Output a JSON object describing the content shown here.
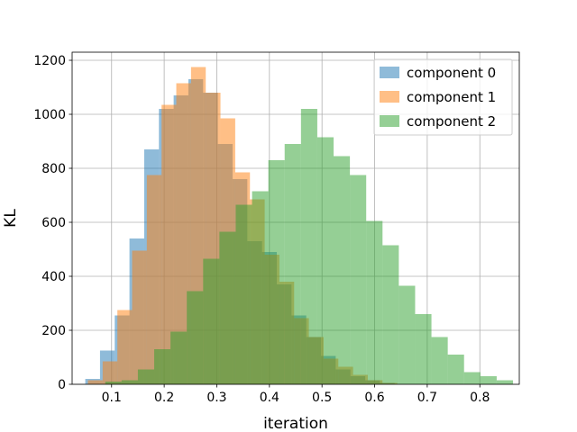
{
  "chart_data": {
    "type": "histogram",
    "title": "",
    "xlabel": "iteration",
    "ylabel": "KL",
    "xlim": [
      0.025,
      0.875
    ],
    "ylim": [
      0,
      1230
    ],
    "xticks": [
      "0.1",
      "0.2",
      "0.3",
      "0.4",
      "0.5",
      "0.6",
      "0.7",
      "0.8"
    ],
    "yticks": [
      "0",
      "200",
      "400",
      "600",
      "800",
      "1000",
      "1200"
    ],
    "grid": true,
    "legend_position": "top-right",
    "series": [
      {
        "name": "component 0",
        "color": "#1f77b4",
        "alpha": 0.5,
        "bins": [
          {
            "x0": 0.05,
            "x1": 0.078,
            "y": 20
          },
          {
            "x0": 0.078,
            "x1": 0.106,
            "y": 125
          },
          {
            "x0": 0.106,
            "x1": 0.134,
            "y": 255
          },
          {
            "x0": 0.134,
            "x1": 0.162,
            "y": 540
          },
          {
            "x0": 0.162,
            "x1": 0.19,
            "y": 870
          },
          {
            "x0": 0.19,
            "x1": 0.218,
            "y": 1020
          },
          {
            "x0": 0.218,
            "x1": 0.246,
            "y": 1070
          },
          {
            "x0": 0.246,
            "x1": 0.274,
            "y": 1130
          },
          {
            "x0": 0.274,
            "x1": 0.302,
            "y": 1080
          },
          {
            "x0": 0.302,
            "x1": 0.33,
            "y": 890
          },
          {
            "x0": 0.33,
            "x1": 0.358,
            "y": 760
          },
          {
            "x0": 0.358,
            "x1": 0.386,
            "y": 530
          },
          {
            "x0": 0.386,
            "x1": 0.414,
            "y": 490
          },
          {
            "x0": 0.414,
            "x1": 0.442,
            "y": 370
          },
          {
            "x0": 0.442,
            "x1": 0.47,
            "y": 255
          },
          {
            "x0": 0.47,
            "x1": 0.498,
            "y": 175
          },
          {
            "x0": 0.498,
            "x1": 0.526,
            "y": 105
          },
          {
            "x0": 0.526,
            "x1": 0.554,
            "y": 55
          },
          {
            "x0": 0.554,
            "x1": 0.582,
            "y": 30
          },
          {
            "x0": 0.582,
            "x1": 0.61,
            "y": 15
          },
          {
            "x0": 0.61,
            "x1": 0.638,
            "y": 5
          }
        ]
      },
      {
        "name": "component 1",
        "color": "#ff7f0e",
        "alpha": 0.5,
        "bins": [
          {
            "x0": 0.055,
            "x1": 0.083,
            "y": 15
          },
          {
            "x0": 0.083,
            "x1": 0.111,
            "y": 85
          },
          {
            "x0": 0.111,
            "x1": 0.139,
            "y": 275
          },
          {
            "x0": 0.139,
            "x1": 0.167,
            "y": 495
          },
          {
            "x0": 0.167,
            "x1": 0.195,
            "y": 775
          },
          {
            "x0": 0.195,
            "x1": 0.223,
            "y": 1035
          },
          {
            "x0": 0.223,
            "x1": 0.251,
            "y": 1115
          },
          {
            "x0": 0.251,
            "x1": 0.279,
            "y": 1175
          },
          {
            "x0": 0.279,
            "x1": 0.307,
            "y": 1080
          },
          {
            "x0": 0.307,
            "x1": 0.335,
            "y": 985
          },
          {
            "x0": 0.335,
            "x1": 0.363,
            "y": 785
          },
          {
            "x0": 0.363,
            "x1": 0.391,
            "y": 685
          },
          {
            "x0": 0.391,
            "x1": 0.419,
            "y": 480
          },
          {
            "x0": 0.419,
            "x1": 0.447,
            "y": 380
          },
          {
            "x0": 0.447,
            "x1": 0.475,
            "y": 245
          },
          {
            "x0": 0.475,
            "x1": 0.503,
            "y": 175
          },
          {
            "x0": 0.503,
            "x1": 0.531,
            "y": 95
          },
          {
            "x0": 0.531,
            "x1": 0.559,
            "y": 65
          },
          {
            "x0": 0.559,
            "x1": 0.587,
            "y": 35
          },
          {
            "x0": 0.587,
            "x1": 0.615,
            "y": 15
          },
          {
            "x0": 0.615,
            "x1": 0.643,
            "y": 5
          }
        ]
      },
      {
        "name": "component 2",
        "color": "#2ca02c",
        "alpha": 0.5,
        "bins": [
          {
            "x0": 0.088,
            "x1": 0.119,
            "y": 10
          },
          {
            "x0": 0.119,
            "x1": 0.15,
            "y": 15
          },
          {
            "x0": 0.15,
            "x1": 0.181,
            "y": 55
          },
          {
            "x0": 0.181,
            "x1": 0.212,
            "y": 130
          },
          {
            "x0": 0.212,
            "x1": 0.243,
            "y": 195
          },
          {
            "x0": 0.243,
            "x1": 0.274,
            "y": 345
          },
          {
            "x0": 0.274,
            "x1": 0.305,
            "y": 465
          },
          {
            "x0": 0.305,
            "x1": 0.336,
            "y": 565
          },
          {
            "x0": 0.336,
            "x1": 0.367,
            "y": 665
          },
          {
            "x0": 0.367,
            "x1": 0.398,
            "y": 715
          },
          {
            "x0": 0.398,
            "x1": 0.429,
            "y": 830
          },
          {
            "x0": 0.429,
            "x1": 0.46,
            "y": 890
          },
          {
            "x0": 0.46,
            "x1": 0.491,
            "y": 1020
          },
          {
            "x0": 0.491,
            "x1": 0.522,
            "y": 915
          },
          {
            "x0": 0.522,
            "x1": 0.553,
            "y": 845
          },
          {
            "x0": 0.553,
            "x1": 0.584,
            "y": 775
          },
          {
            "x0": 0.584,
            "x1": 0.615,
            "y": 605
          },
          {
            "x0": 0.615,
            "x1": 0.646,
            "y": 515
          },
          {
            "x0": 0.646,
            "x1": 0.677,
            "y": 365
          },
          {
            "x0": 0.677,
            "x1": 0.708,
            "y": 260
          },
          {
            "x0": 0.708,
            "x1": 0.739,
            "y": 175
          },
          {
            "x0": 0.739,
            "x1": 0.77,
            "y": 110
          },
          {
            "x0": 0.77,
            "x1": 0.801,
            "y": 45
          },
          {
            "x0": 0.801,
            "x1": 0.832,
            "y": 30
          },
          {
            "x0": 0.832,
            "x1": 0.863,
            "y": 15
          }
        ]
      }
    ]
  }
}
